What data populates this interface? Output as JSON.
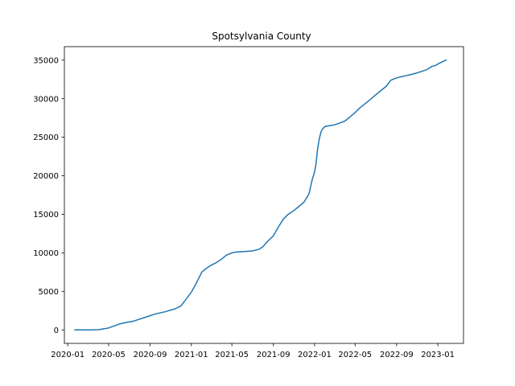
{
  "chart_data": {
    "type": "line",
    "title": "Spotsylvania County",
    "xlabel": "",
    "ylabel": "",
    "x_axis_type": "date",
    "xlim": [
      "2019-12-22",
      "2023-03-18"
    ],
    "ylim": [
      -1750,
      36750
    ],
    "grid": false,
    "line_color": "#1f77b4",
    "x_ticks": [
      {
        "value": "2020-01-01",
        "label": "2020-01"
      },
      {
        "value": "2020-05-01",
        "label": "2020-05"
      },
      {
        "value": "2020-09-01",
        "label": "2020-09"
      },
      {
        "value": "2021-01-01",
        "label": "2021-01"
      },
      {
        "value": "2021-05-01",
        "label": "2021-05"
      },
      {
        "value": "2021-09-01",
        "label": "2021-09"
      },
      {
        "value": "2022-01-01",
        "label": "2022-01"
      },
      {
        "value": "2022-05-01",
        "label": "2022-05"
      },
      {
        "value": "2022-09-01",
        "label": "2022-09"
      },
      {
        "value": "2023-01-01",
        "label": "2023-01"
      }
    ],
    "y_ticks": [
      {
        "value": 0,
        "label": "0"
      },
      {
        "value": 5000,
        "label": "5000"
      },
      {
        "value": 10000,
        "label": "10000"
      },
      {
        "value": 15000,
        "label": "15000"
      },
      {
        "value": 20000,
        "label": "20000"
      },
      {
        "value": 25000,
        "label": "25000"
      },
      {
        "value": 30000,
        "label": "30000"
      },
      {
        "value": 35000,
        "label": "35000"
      }
    ],
    "x": [
      "2020-01-22",
      "2020-03-01",
      "2020-04-01",
      "2020-05-01",
      "2020-06-01",
      "2020-06-15",
      "2020-07-15",
      "2020-08-01",
      "2020-08-15",
      "2020-09-01",
      "2020-09-15",
      "2020-10-15",
      "2020-11-15",
      "2020-12-01",
      "2020-12-15",
      "2021-01-01",
      "2021-01-15",
      "2021-02-01",
      "2021-02-15",
      "2021-03-01",
      "2021-03-15",
      "2021-04-01",
      "2021-04-15",
      "2021-05-01",
      "2021-05-15",
      "2021-06-01",
      "2021-07-01",
      "2021-07-20",
      "2021-08-01",
      "2021-08-15",
      "2021-09-01",
      "2021-09-15",
      "2021-10-01",
      "2021-10-15",
      "2021-11-01",
      "2021-11-15",
      "2021-12-01",
      "2021-12-15",
      "2021-12-25",
      "2022-01-01",
      "2022-01-05",
      "2022-01-10",
      "2022-01-15",
      "2022-01-20",
      "2022-01-25",
      "2022-02-01",
      "2022-02-15",
      "2022-03-01",
      "2022-03-20",
      "2022-04-01",
      "2022-04-15",
      "2022-05-01",
      "2022-05-15",
      "2022-06-01",
      "2022-06-15",
      "2022-07-01",
      "2022-07-15",
      "2022-08-01",
      "2022-08-15",
      "2022-09-01",
      "2022-09-15",
      "2022-10-01",
      "2022-10-15",
      "2022-11-01",
      "2022-11-15",
      "2022-12-01",
      "2022-12-15",
      "2022-12-25",
      "2023-01-01",
      "2023-01-10",
      "2023-01-25"
    ],
    "values": [
      0,
      0,
      20,
      250,
      750,
      900,
      1150,
      1400,
      1600,
      1850,
      2050,
      2350,
      2750,
      3100,
      3900,
      4900,
      6000,
      7500,
      8000,
      8400,
      8700,
      9200,
      9700,
      10000,
      10100,
      10150,
      10250,
      10450,
      10800,
      11500,
      12200,
      13300,
      14400,
      15000,
      15500,
      16000,
      16600,
      17600,
      19500,
      20500,
      21500,
      23500,
      24800,
      25700,
      26100,
      26400,
      26500,
      26600,
      26900,
      27100,
      27600,
      28200,
      28800,
      29400,
      29900,
      30500,
      31000,
      31600,
      32400,
      32700,
      32850,
      33000,
      33150,
      33350,
      33550,
      33800,
      34200,
      34300,
      34500,
      34700,
      35000
    ]
  }
}
